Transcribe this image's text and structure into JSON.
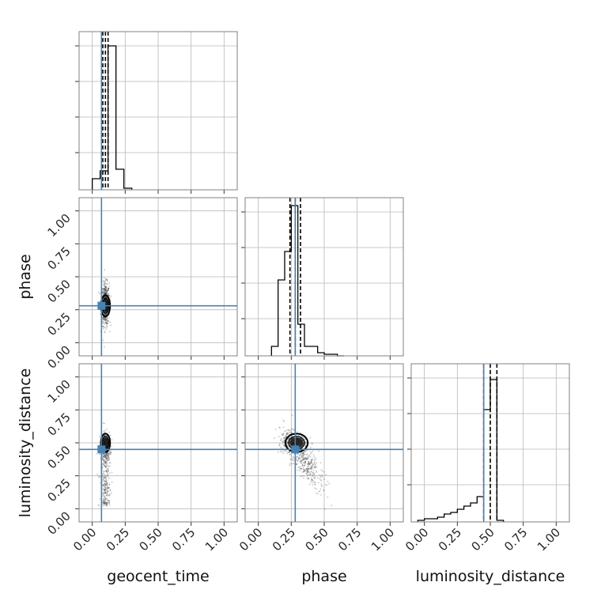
{
  "chart_data": {
    "type": "corner",
    "parameters": [
      "geocent_time",
      "phase",
      "luminosity_distance"
    ],
    "tick_values": [
      0.0,
      0.25,
      0.5,
      0.75,
      1.0
    ],
    "tick_labels": [
      "0.00",
      "0.25",
      "0.50",
      "0.75",
      "1.00"
    ],
    "axis_range": [
      -0.1,
      1.1
    ],
    "grid": true,
    "truth_color": "#4682b4",
    "hist_color": "#000000",
    "injection": {
      "geocent_time": 0.07,
      "phase": 0.28,
      "luminosity_distance": 0.45
    },
    "quantiles": {
      "geocent_time": [
        0.08,
        0.1,
        0.12
      ],
      "phase": [
        0.24,
        0.28,
        0.32
      ],
      "luminosity_distance": [
        0.45,
        0.5,
        0.55
      ]
    },
    "histograms": {
      "geocent_time": {
        "bin_edges": [
          0.0,
          0.06,
          0.12,
          0.18,
          0.24,
          0.3
        ],
        "counts": [
          0.07,
          0.12,
          0.91,
          0.13,
          0.01
        ]
      },
      "phase": {
        "bin_edges": [
          0.1,
          0.15,
          0.2,
          0.25,
          0.3,
          0.35,
          0.4,
          0.45,
          0.5,
          0.55,
          0.6,
          0.65
        ],
        "counts": [
          0.06,
          0.48,
          0.66,
          0.95,
          0.2,
          0.06,
          0.06,
          0.02,
          0.01,
          0.01,
          0.0
        ]
      },
      "luminosity_distance": {
        "bin_edges": [
          -0.05,
          0.0,
          0.05,
          0.1,
          0.15,
          0.2,
          0.25,
          0.3,
          0.35,
          0.4,
          0.45,
          0.5,
          0.55,
          0.6
        ],
        "counts": [
          0.01,
          0.02,
          0.02,
          0.03,
          0.05,
          0.06,
          0.08,
          0.1,
          0.12,
          0.16,
          0.71,
          0.9,
          0.01
        ]
      }
    },
    "scatter_clusters": [
      {
        "x": "geocent_time",
        "y": "phase",
        "center": [
          0.1,
          0.29
        ],
        "spread": [
          0.015,
          0.08
        ],
        "n": 650,
        "extra": "tail-up"
      },
      {
        "x": "geocent_time",
        "y": "luminosity_distance",
        "center": [
          0.1,
          0.3
        ],
        "spread": [
          0.018,
          0.13
        ],
        "n": 700,
        "extra": "low-band"
      },
      {
        "x": "phase",
        "y": "luminosity_distance",
        "center": [
          0.34,
          0.38
        ],
        "spread": [
          0.07,
          0.11
        ],
        "n": 750,
        "extra": "diagonal"
      }
    ],
    "contour_cores": [
      {
        "x": "geocent_time",
        "y": "phase",
        "center": [
          0.1,
          0.28
        ],
        "rx": 0.035,
        "ry": 0.08
      },
      {
        "x": "geocent_time",
        "y": "luminosity_distance",
        "center": [
          0.1,
          0.5
        ],
        "rx": 0.035,
        "ry": 0.07
      },
      {
        "x": "phase",
        "y": "luminosity_distance",
        "center": [
          0.29,
          0.5
        ],
        "rx": 0.085,
        "ry": 0.07
      }
    ]
  }
}
